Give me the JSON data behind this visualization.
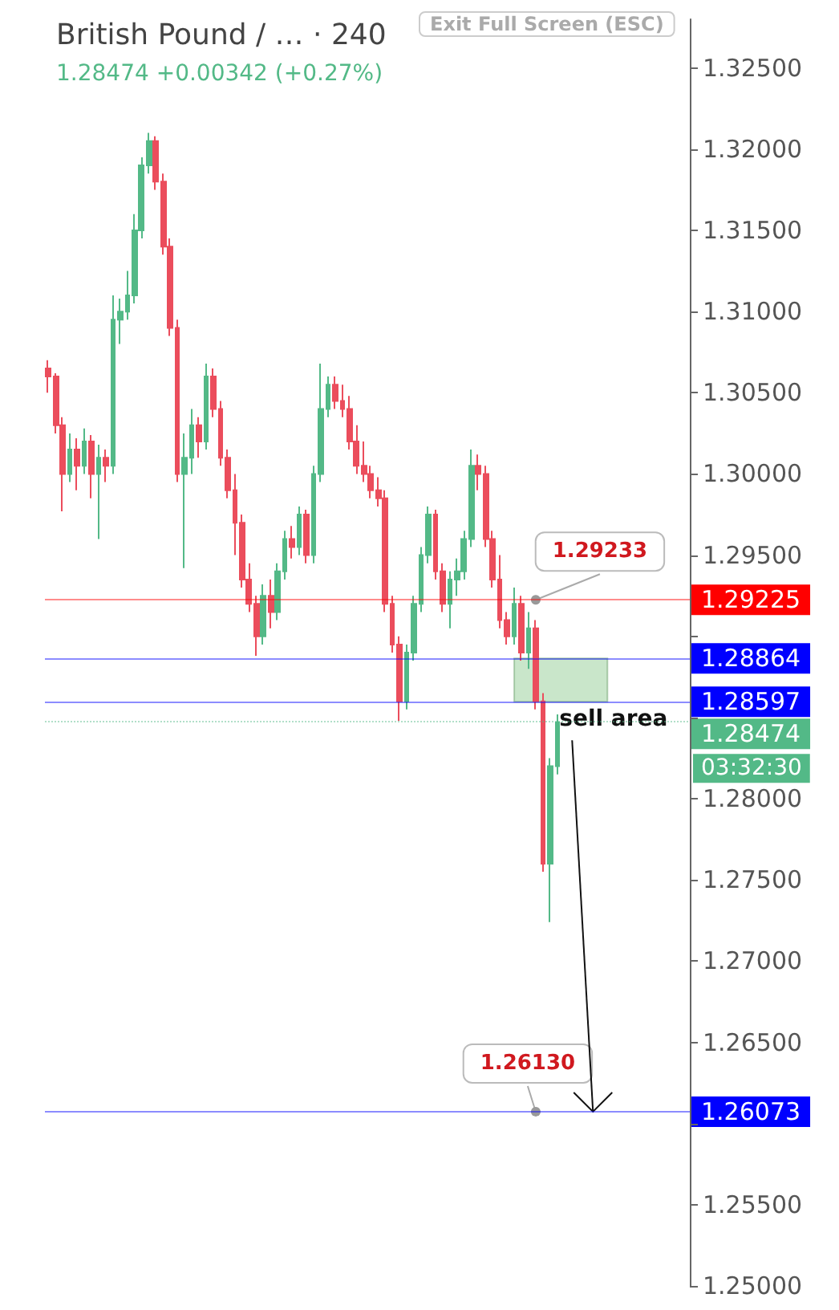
{
  "chart_data": {
    "type": "candlestick",
    "title": "British Pound / … · 240",
    "subtitle": "1.28474 +0.00342 (+0.27%)",
    "categories": [
      null,
      null,
      null,
      null,
      null,
      null,
      null,
      null,
      null,
      null,
      null,
      null,
      null,
      null,
      null,
      null,
      null,
      null,
      null,
      null,
      null,
      null,
      null,
      null,
      null,
      null,
      null,
      null,
      null,
      null,
      null,
      null,
      null,
      null,
      null,
      null,
      null,
      null,
      null,
      null,
      null,
      null,
      null,
      null,
      null,
      null,
      null,
      null,
      null,
      null,
      null,
      null,
      null,
      null,
      null,
      null,
      null,
      null,
      null,
      null,
      null,
      null,
      null,
      null,
      null,
      null,
      null,
      null,
      null,
      null,
      null,
      null,
      null,
      null,
      null,
      null,
      null,
      null,
      null,
      null,
      null,
      null,
      null,
      null,
      null,
      null,
      null,
      null,
      null,
      null
    ],
    "ohlc": [
      [
        1.3065,
        1.307,
        1.305,
        1.306
      ],
      [
        1.306,
        1.3062,
        1.3025,
        1.303
      ],
      [
        1.303,
        1.3035,
        1.2977,
        1.3
      ],
      [
        1.3,
        1.3025,
        1.2995,
        1.3015
      ],
      [
        1.3015,
        1.3022,
        1.299,
        1.3005
      ],
      [
        1.3005,
        1.3028,
        1.3,
        1.302
      ],
      [
        1.302,
        1.3024,
        1.2985,
        1.3
      ],
      [
        1.3,
        1.3018,
        1.296,
        1.301
      ],
      [
        1.301,
        1.3015,
        1.2995,
        1.3005
      ],
      [
        1.3005,
        1.311,
        1.3,
        1.3095
      ],
      [
        1.3095,
        1.3108,
        1.308,
        1.31
      ],
      [
        1.31,
        1.3125,
        1.3095,
        1.311
      ],
      [
        1.311,
        1.316,
        1.3105,
        1.315
      ],
      [
        1.315,
        1.3195,
        1.3145,
        1.319
      ],
      [
        1.319,
        1.321,
        1.3185,
        1.3205
      ],
      [
        1.3205,
        1.3208,
        1.3175,
        1.318
      ],
      [
        1.318,
        1.3185,
        1.3135,
        1.314
      ],
      [
        1.314,
        1.3145,
        1.3085,
        1.309
      ],
      [
        1.309,
        1.3095,
        1.2995,
        1.3
      ],
      [
        1.3,
        1.3025,
        1.2942,
        1.301
      ],
      [
        1.301,
        1.304,
        1.3,
        1.303
      ],
      [
        1.303,
        1.3035,
        1.301,
        1.302
      ],
      [
        1.302,
        1.3068,
        1.3015,
        1.306
      ],
      [
        1.306,
        1.3065,
        1.3035,
        1.304
      ],
      [
        1.304,
        1.3045,
        1.3005,
        1.301
      ],
      [
        1.301,
        1.3015,
        1.2985,
        1.299
      ],
      [
        1.299,
        1.3,
        1.295,
        1.297
      ],
      [
        1.297,
        1.2975,
        1.293,
        1.2935
      ],
      [
        1.2935,
        1.2945,
        1.2915,
        1.292
      ],
      [
        1.292,
        1.2925,
        1.2888,
        1.29
      ],
      [
        1.29,
        1.2932,
        1.2895,
        1.2925
      ],
      [
        1.2925,
        1.2935,
        1.2905,
        1.2915
      ],
      [
        1.2915,
        1.2945,
        1.291,
        1.294
      ],
      [
        1.294,
        1.2965,
        1.2935,
        1.296
      ],
      [
        1.296,
        1.2968,
        1.2948,
        1.2955
      ],
      [
        1.2955,
        1.298,
        1.295,
        1.2975
      ],
      [
        1.2975,
        1.2978,
        1.2945,
        1.295
      ],
      [
        1.295,
        1.3005,
        1.2945,
        1.3
      ],
      [
        1.3,
        1.3068,
        1.2995,
        1.304
      ],
      [
        1.304,
        1.306,
        1.3035,
        1.3055
      ],
      [
        1.3055,
        1.306,
        1.304,
        1.3045
      ],
      [
        1.3045,
        1.3055,
        1.3035,
        1.304
      ],
      [
        1.304,
        1.3048,
        1.3015,
        1.302
      ],
      [
        1.302,
        1.303,
        1.3,
        1.3005
      ],
      [
        1.3005,
        1.302,
        1.2995,
        1.3
      ],
      [
        1.3,
        1.3005,
        1.2985,
        1.299
      ],
      [
        1.299,
        1.2998,
        1.298,
        1.2985
      ],
      [
        1.2985,
        1.299,
        1.2915,
        1.292
      ],
      [
        1.292,
        1.2925,
        1.289,
        1.2895
      ],
      [
        1.2895,
        1.29,
        1.2848,
        1.286
      ],
      [
        1.286,
        1.2895,
        1.2855,
        1.289
      ],
      [
        1.289,
        1.2925,
        1.2885,
        1.292
      ],
      [
        1.292,
        1.2955,
        1.2915,
        1.295
      ],
      [
        1.295,
        1.298,
        1.2945,
        1.2975
      ],
      [
        1.2975,
        1.2978,
        1.2935,
        1.294
      ],
      [
        1.294,
        1.2945,
        1.2915,
        1.292
      ],
      [
        1.292,
        1.294,
        1.2905,
        1.2935
      ],
      [
        1.2935,
        1.2948,
        1.2925,
        1.294
      ],
      [
        1.294,
        1.2965,
        1.2935,
        1.296
      ],
      [
        1.296,
        1.3015,
        1.2955,
        1.3005
      ],
      [
        1.3005,
        1.3012,
        1.299,
        1.3
      ],
      [
        1.3,
        1.3005,
        1.2955,
        1.296
      ],
      [
        1.296,
        1.2965,
        1.293,
        1.2935
      ],
      [
        1.2935,
        1.295,
        1.2905,
        1.291
      ],
      [
        1.291,
        1.2915,
        1.2895,
        1.29
      ],
      [
        1.29,
        1.293,
        1.2895,
        1.292
      ],
      [
        1.292,
        1.2925,
        1.2885,
        1.289
      ],
      [
        1.289,
        1.2915,
        1.288,
        1.2905
      ],
      [
        1.2905,
        1.291,
        1.2855,
        1.286
      ],
      [
        1.286,
        1.2865,
        1.2755,
        1.276
      ],
      [
        1.276,
        1.2825,
        1.2724,
        1.282
      ],
      [
        1.282,
        1.2852,
        1.2815,
        1.2847
      ],
      null,
      null,
      null,
      null,
      null,
      null,
      null,
      null,
      null,
      null,
      null,
      null,
      null,
      null,
      null,
      null,
      null,
      null
    ],
    "ylim": [
      1.25,
      1.328
    ],
    "yticks": [
      {
        "value": 1.25,
        "label": "1.25000"
      },
      {
        "value": 1.255,
        "label": "1.25500"
      },
      {
        "value": 1.26,
        "label": null
      },
      {
        "value": 1.265,
        "label": "1.26500"
      },
      {
        "value": 1.27,
        "label": "1.27000"
      },
      {
        "value": 1.275,
        "label": "1.27500"
      },
      {
        "value": 1.28,
        "label": "1.28000"
      },
      {
        "value": 1.285,
        "label": null
      },
      {
        "value": 1.29,
        "label": null
      },
      {
        "value": 1.295,
        "label": "1.29500"
      },
      {
        "value": 1.3,
        "label": "1.30000"
      },
      {
        "value": 1.305,
        "label": "1.30500"
      },
      {
        "value": 1.31,
        "label": "1.31000"
      },
      {
        "value": 1.315,
        "label": "1.31500"
      },
      {
        "value": 1.32,
        "label": "1.32000"
      },
      {
        "value": 1.325,
        "label": "1.32500"
      }
    ],
    "tick_labels": "y",
    "ref_lines": [
      {
        "axis": "y",
        "value": 1.29225,
        "label": "1.29225",
        "color": "#ff0000",
        "line_style": "solid"
      },
      {
        "axis": "y",
        "value": 1.28864,
        "label": "1.28864",
        "color": "#0000ff",
        "line_style": "solid"
      },
      {
        "axis": "y",
        "value": 1.28597,
        "label": "1.28597",
        "color": "#0000ff",
        "line_style": "solid"
      },
      {
        "axis": "y",
        "value": 1.28474,
        "label": "1.28474",
        "color": "#53b987",
        "line_style": "dotted"
      },
      {
        "axis": "y",
        "value": 1.26073,
        "label": "1.26073",
        "color": "#0000ff",
        "line_style": "solid"
      }
    ],
    "bands": [
      {
        "axis": "y",
        "from": 1.28597,
        "to": 1.28864,
        "label": "sell area",
        "color": "#a5d6a7"
      }
    ],
    "annotations": [
      "Exit Full Screen (ESC)",
      "03:32:30",
      "1.29233",
      "1.26130"
    ]
  }
}
